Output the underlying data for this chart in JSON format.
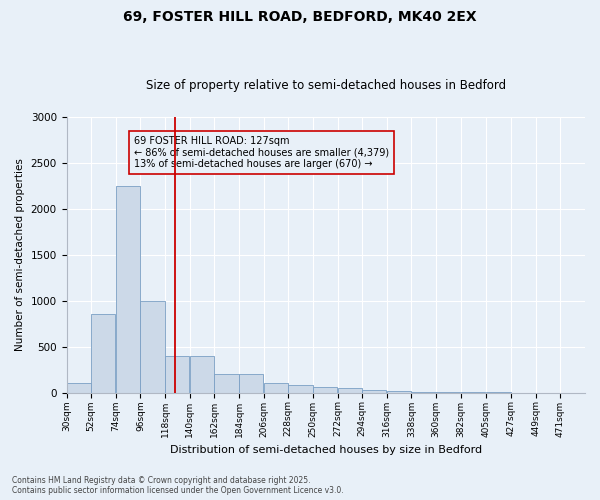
{
  "title1": "69, FOSTER HILL ROAD, BEDFORD, MK40 2EX",
  "title2": "Size of property relative to semi-detached houses in Bedford",
  "xlabel": "Distribution of semi-detached houses by size in Bedford",
  "ylabel": "Number of semi-detached properties",
  "footnote1": "Contains HM Land Registry data © Crown copyright and database right 2025.",
  "footnote2": "Contains public sector information licensed under the Open Government Licence v3.0.",
  "property_label": "69 FOSTER HILL ROAD: 127sqm",
  "smaller_label": "← 86% of semi-detached houses are smaller (4,379)",
  "larger_label": "13% of semi-detached houses are larger (670) →",
  "property_size": 127,
  "bar_edges": [
    30,
    52,
    74,
    96,
    118,
    140,
    162,
    184,
    206,
    228,
    250,
    272,
    294,
    316,
    338,
    360,
    382,
    405,
    427,
    449,
    471
  ],
  "bar_values": [
    100,
    850,
    2250,
    1000,
    400,
    400,
    200,
    200,
    100,
    80,
    60,
    50,
    30,
    15,
    8,
    5,
    3,
    2,
    1,
    1
  ],
  "bar_color": "#ccd9e8",
  "bar_edge_color": "#7a9fc4",
  "vline_color": "#cc0000",
  "bg_color": "#e8f0f8",
  "grid_color": "#ffffff",
  "ylim": [
    0,
    3000
  ],
  "yticks": [
    0,
    500,
    1000,
    1500,
    2000,
    2500,
    3000
  ],
  "title1_fontsize": 10,
  "title2_fontsize": 8.5,
  "ylabel_fontsize": 7.5,
  "xlabel_fontsize": 8,
  "annotation_fontsize": 7,
  "footnote_fontsize": 5.5,
  "xtick_fontsize": 6.5,
  "ytick_fontsize": 7.5
}
